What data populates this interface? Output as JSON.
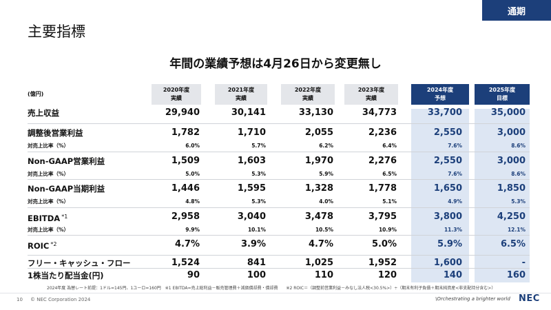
{
  "header": {
    "tag": "通期",
    "title": "主要指標"
  },
  "headline": "年間の業績予想は4月26日から変更無し",
  "unit": "(億円)",
  "columns": [
    {
      "year": "2020年度",
      "type": "実績",
      "forecast": false
    },
    {
      "year": "2021年度",
      "type": "実績",
      "forecast": false
    },
    {
      "year": "2022年度",
      "type": "実績",
      "forecast": false
    },
    {
      "year": "2023年度",
      "type": "実績",
      "forecast": false
    },
    {
      "year": "2024年度",
      "type": "予想",
      "forecast": true
    },
    {
      "year": "2025年度",
      "type": "目標",
      "forecast": true
    }
  ],
  "rows": [
    {
      "label": "売上収益",
      "sup": "",
      "kind": "main",
      "values": [
        "29,940",
        "30,141",
        "33,130",
        "34,773",
        "33,700",
        "35,000"
      ]
    },
    {
      "label": "調整後営業利益",
      "sup": "",
      "kind": "main",
      "values": [
        "1,782",
        "1,710",
        "2,055",
        "2,236",
        "2,550",
        "3,000"
      ]
    },
    {
      "label": "対売上比率（%）",
      "sup": "",
      "kind": "sub",
      "values": [
        "6.0%",
        "5.7%",
        "6.2%",
        "6.4%",
        "7.6%",
        "8.6%"
      ]
    },
    {
      "label": "Non-GAAP営業利益",
      "sup": "",
      "kind": "main",
      "values": [
        "1,509",
        "1,603",
        "1,970",
        "2,276",
        "2,550",
        "3,000"
      ]
    },
    {
      "label": "対売上比率（%）",
      "sup": "",
      "kind": "sub",
      "values": [
        "5.0%",
        "5.3%",
        "5.9%",
        "6.5%",
        "7.6%",
        "8.6%"
      ]
    },
    {
      "label": "Non-GAAP当期利益",
      "sup": "",
      "kind": "main",
      "values": [
        "1,446",
        "1,595",
        "1,328",
        "1,778",
        "1,650",
        "1,850"
      ]
    },
    {
      "label": "対売上比率（%）",
      "sup": "",
      "kind": "sub",
      "values": [
        "4.8%",
        "5.3%",
        "4.0%",
        "5.1%",
        "4.9%",
        "5.3%"
      ]
    },
    {
      "label": "EBITDA",
      "sup": "*1",
      "kind": "main",
      "values": [
        "2,958",
        "3,040",
        "3,478",
        "3,795",
        "3,800",
        "4,250"
      ]
    },
    {
      "label": "対売上比率（%）",
      "sup": "",
      "kind": "sub",
      "values": [
        "9.9%",
        "10.1%",
        "10.5%",
        "10.9%",
        "11.3%",
        "12.1%"
      ]
    },
    {
      "label": "ROIC",
      "sup": "*2",
      "kind": "main",
      "values": [
        "4.7%",
        "3.9%",
        "4.7%",
        "5.0%",
        "5.9%",
        "6.5%"
      ]
    },
    {
      "label": "フリー・キャッシュ・フロー",
      "sup": "",
      "kind": "main",
      "values": [
        "1,524",
        "841",
        "1,025",
        "1,952",
        "1,600",
        "-"
      ]
    },
    {
      "label": "1株当たり配当金(円)",
      "sup": "",
      "kind": "main",
      "values": [
        "90",
        "100",
        "110",
        "120",
        "140",
        "160"
      ]
    }
  ],
  "footnote": "2024年度 為替レート前提：1ドル=145円、1ユーロ=160円　※1 EBITDA=売上総利益－販売管理費＋減価償却費・償却費　　※2 ROIC＝（調整前営業利益－みなし法人税<30.5%>）÷（期末有利子負債＋期末純資産<非支配持分含む>）",
  "footer": {
    "page_number": "10",
    "copyright": "© NEC Corporation 2024",
    "tagline": "\\Orchestrating a brighter world",
    "logo": "NEC"
  },
  "colors": {
    "accent": "#1c3f7a",
    "highlight": "#dde6f3",
    "header_gray": "#e4e6ea"
  }
}
